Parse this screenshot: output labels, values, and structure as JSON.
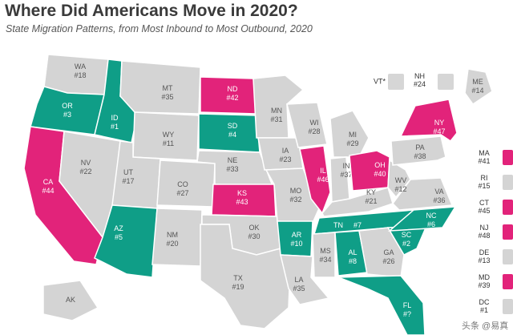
{
  "title": "Where Did Americans Move in 2020?",
  "subtitle": "State Migration Patterns, from Most Inbound to Most Outbound, 2020",
  "colors": {
    "inbound": "#0f9e87",
    "outbound": "#e2237a",
    "neutral": "#d4d4d4"
  },
  "states": [
    {
      "abbr": "WA",
      "rank": "#18",
      "cat": "neutral"
    },
    {
      "abbr": "OR",
      "rank": "#3",
      "cat": "inbound"
    },
    {
      "abbr": "CA",
      "rank": "#44",
      "cat": "outbound"
    },
    {
      "abbr": "ID",
      "rank": "#1",
      "cat": "inbound"
    },
    {
      "abbr": "NV",
      "rank": "#22",
      "cat": "neutral"
    },
    {
      "abbr": "MT",
      "rank": "#35",
      "cat": "neutral"
    },
    {
      "abbr": "WY",
      "rank": "#11",
      "cat": "neutral"
    },
    {
      "abbr": "UT",
      "rank": "#17",
      "cat": "neutral"
    },
    {
      "abbr": "AZ",
      "rank": "#5",
      "cat": "inbound"
    },
    {
      "abbr": "CO",
      "rank": "#27",
      "cat": "neutral"
    },
    {
      "abbr": "NM",
      "rank": "#20",
      "cat": "neutral"
    },
    {
      "abbr": "ND",
      "rank": "#42",
      "cat": "outbound"
    },
    {
      "abbr": "SD",
      "rank": "#4",
      "cat": "inbound"
    },
    {
      "abbr": "NE",
      "rank": "#33",
      "cat": "neutral"
    },
    {
      "abbr": "KS",
      "rank": "#43",
      "cat": "outbound"
    },
    {
      "abbr": "OK",
      "rank": "#30",
      "cat": "neutral"
    },
    {
      "abbr": "TX",
      "rank": "#19",
      "cat": "neutral"
    },
    {
      "abbr": "MN",
      "rank": "#31",
      "cat": "neutral"
    },
    {
      "abbr": "IA",
      "rank": "#23",
      "cat": "neutral"
    },
    {
      "abbr": "MO",
      "rank": "#32",
      "cat": "neutral"
    },
    {
      "abbr": "AR",
      "rank": "#10",
      "cat": "inbound"
    },
    {
      "abbr": "LA",
      "rank": "#35",
      "cat": "neutral"
    },
    {
      "abbr": "WI",
      "rank": "#28",
      "cat": "neutral"
    },
    {
      "abbr": "IL",
      "rank": "#46",
      "cat": "outbound"
    },
    {
      "abbr": "MI",
      "rank": "#29",
      "cat": "neutral"
    },
    {
      "abbr": "IN",
      "rank": "#37",
      "cat": "neutral"
    },
    {
      "abbr": "OH",
      "rank": "#40",
      "cat": "outbound"
    },
    {
      "abbr": "KY",
      "rank": "#21",
      "cat": "neutral"
    },
    {
      "abbr": "TN",
      "rank": "#7",
      "cat": "inbound"
    },
    {
      "abbr": "MS",
      "rank": "#34",
      "cat": "neutral"
    },
    {
      "abbr": "AL",
      "rank": "#8",
      "cat": "inbound"
    },
    {
      "abbr": "GA",
      "rank": "#26",
      "cat": "neutral"
    },
    {
      "abbr": "FL",
      "rank": "#?",
      "cat": "inbound"
    },
    {
      "abbr": "SC",
      "rank": "#2",
      "cat": "inbound"
    },
    {
      "abbr": "NC",
      "rank": "#6",
      "cat": "inbound"
    },
    {
      "abbr": "VA",
      "rank": "#36",
      "cat": "neutral"
    },
    {
      "abbr": "WV",
      "rank": "#12",
      "cat": "neutral"
    },
    {
      "abbr": "PA",
      "rank": "#38",
      "cat": "neutral"
    },
    {
      "abbr": "NY",
      "rank": "#47",
      "cat": "outbound"
    },
    {
      "abbr": "ME",
      "rank": "#14",
      "cat": "neutral"
    },
    {
      "abbr": "AK",
      "rank": "",
      "cat": "neutral"
    }
  ],
  "northeast": {
    "vt": {
      "abbr": "VT*"
    },
    "nh": {
      "abbr": "NH",
      "rank": "#24"
    }
  },
  "sidebar": [
    {
      "abbr": "MA",
      "rank": "#41",
      "cat": "outbound"
    },
    {
      "abbr": "RI",
      "rank": "#15",
      "cat": "neutral"
    },
    {
      "abbr": "CT",
      "rank": "#45",
      "cat": "outbound"
    },
    {
      "abbr": "NJ",
      "rank": "#48",
      "cat": "outbound"
    },
    {
      "abbr": "DE",
      "rank": "#13",
      "cat": "neutral"
    },
    {
      "abbr": "MD",
      "rank": "#39",
      "cat": "outbound"
    },
    {
      "abbr": "DC",
      "rank": "#1",
      "cat": "neutral"
    }
  ],
  "watermark": "头条 @易真"
}
